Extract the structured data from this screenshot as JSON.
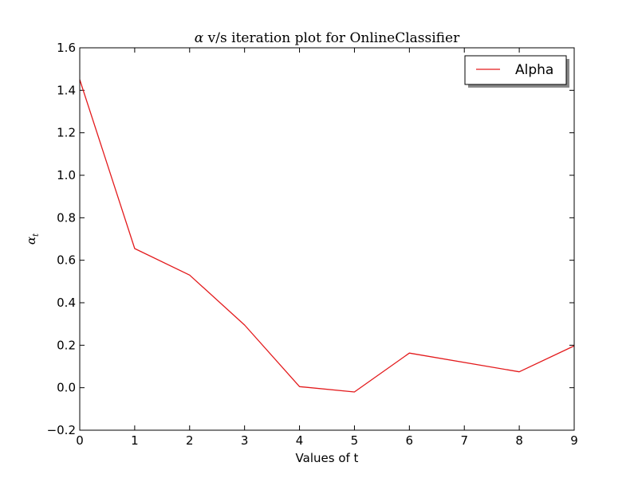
{
  "chart_data": {
    "type": "line",
    "title_symbol": "α",
    "title_rest": " v/s iteration plot for OnlineClassifier",
    "xlabel": "Values of t",
    "ylabel_symbol": "α",
    "ylabel_sub": "t",
    "xlim": [
      0,
      9
    ],
    "ylim": [
      -0.2,
      1.6
    ],
    "xticks": [
      "0",
      "1",
      "2",
      "3",
      "4",
      "5",
      "6",
      "7",
      "8",
      "9"
    ],
    "yticks": [
      "−0.2",
      "0.0",
      "0.2",
      "0.4",
      "0.6",
      "0.8",
      "1.0",
      "1.2",
      "1.4",
      "1.6"
    ],
    "grid": false,
    "legend_position": "top-right",
    "series": [
      {
        "name": "Alpha",
        "color": "#e31a1c",
        "x": [
          0,
          1,
          2,
          3,
          4,
          5,
          6,
          8,
          9
        ],
        "y": [
          1.45,
          0.655,
          0.53,
          0.295,
          0.005,
          -0.02,
          0.163,
          0.075,
          0.197
        ]
      }
    ]
  }
}
